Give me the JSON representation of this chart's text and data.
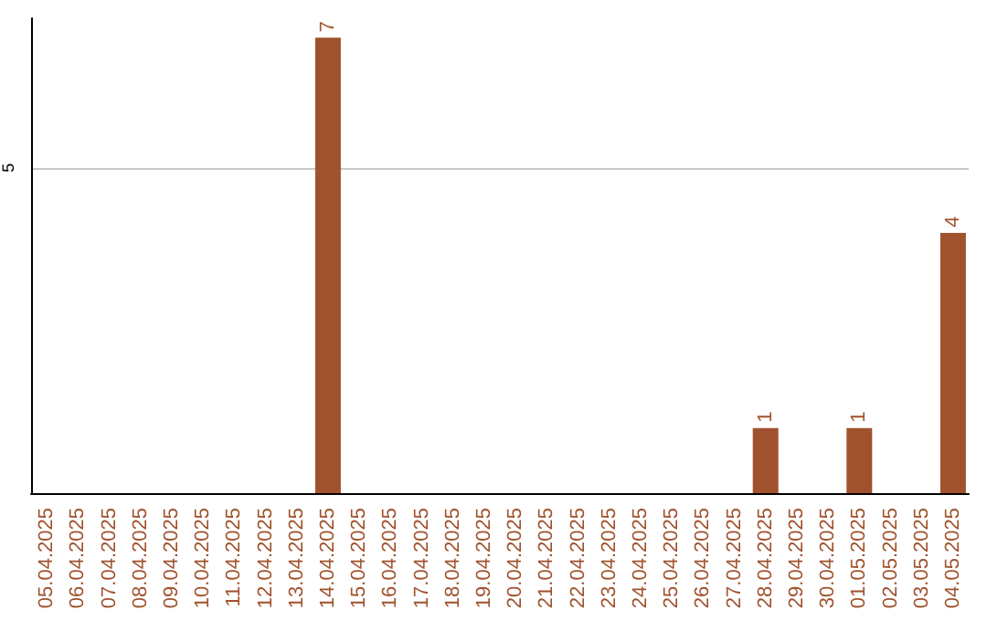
{
  "chart_data": {
    "type": "bar",
    "categories": [
      "05.04.2025",
      "06.04.2025",
      "07.04.2025",
      "08.04.2025",
      "09.04.2025",
      "10.04.2025",
      "11.04.2025",
      "12.04.2025",
      "13.04.2025",
      "14.04.2025",
      "15.04.2025",
      "16.04.2025",
      "17.04.2025",
      "18.04.2025",
      "19.04.2025",
      "20.04.2025",
      "21.04.2025",
      "22.04.2025",
      "23.04.2025",
      "24.04.2025",
      "25.04.2025",
      "26.04.2025",
      "27.04.2025",
      "28.04.2025",
      "29.04.2025",
      "30.04.2025",
      "01.05.2025",
      "02.05.2025",
      "03.05.2025",
      "04.05.2025"
    ],
    "values": [
      0,
      0,
      0,
      0,
      0,
      0,
      0,
      0,
      0,
      7,
      0,
      0,
      0,
      0,
      0,
      0,
      0,
      0,
      0,
      0,
      0,
      0,
      0,
      1,
      0,
      0,
      1,
      0,
      0,
      4
    ],
    "value_labels": [
      null,
      null,
      null,
      null,
      null,
      null,
      null,
      null,
      null,
      "7",
      null,
      null,
      null,
      null,
      null,
      null,
      null,
      null,
      null,
      null,
      null,
      null,
      null,
      "1",
      null,
      null,
      "1",
      null,
      null,
      "4"
    ],
    "color": "#a0522d",
    "ylim": [
      0,
      7.3
    ],
    "yticks": [
      5
    ],
    "grid": "y"
  }
}
